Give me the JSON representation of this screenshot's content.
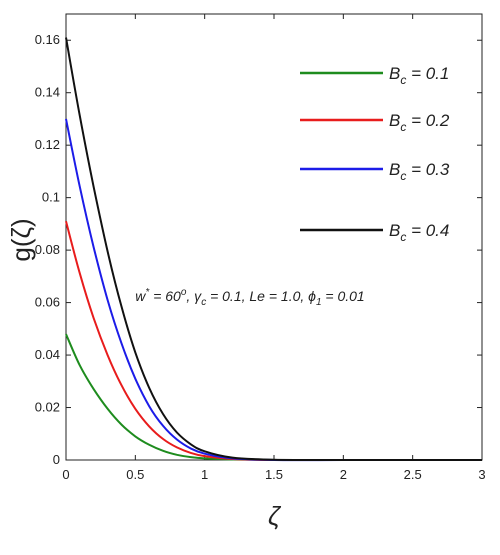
{
  "chart_data": {
    "type": "line",
    "xlabel": "ζ",
    "ylabel": "g(ζ)",
    "xlim": [
      0,
      3
    ],
    "ylim": [
      0,
      0.17
    ],
    "x_ticks": [
      0,
      0.5,
      1,
      1.5,
      2,
      2.5,
      3
    ],
    "x_tick_labels": [
      "0",
      "0.5",
      "1",
      "1.5",
      "2",
      "2.5",
      "3"
    ],
    "y_ticks": [
      0,
      0.02,
      0.04,
      0.06,
      0.08,
      0.1,
      0.12,
      0.14,
      0.16
    ],
    "y_tick_labels": [
      "0",
      "0.02",
      "0.04",
      "0.06",
      "0.08",
      "0.1",
      "0.12",
      "0.14",
      "0.16"
    ],
    "grid": false,
    "legend_position": "top-right",
    "x": [
      0,
      0.1,
      0.2,
      0.3,
      0.4,
      0.5,
      0.6,
      0.7,
      0.8,
      0.9,
      1.0,
      1.2,
      1.5,
      2.0,
      2.5,
      3.0
    ],
    "series": [
      {
        "name": "0.1",
        "color": "#1e8c1e",
        "values": [
          0.048,
          0.036,
          0.027,
          0.0195,
          0.0135,
          0.009,
          0.0058,
          0.0035,
          0.002,
          0.0011,
          0.0006,
          0.0002,
          0.0,
          0.0,
          0.0,
          0.0
        ]
      },
      {
        "name": "0.2",
        "color": "#e81c1c",
        "values": [
          0.091,
          0.071,
          0.054,
          0.04,
          0.0285,
          0.0195,
          0.0128,
          0.008,
          0.0048,
          0.0027,
          0.0015,
          0.0004,
          0.0,
          0.0,
          0.0,
          0.0
        ]
      },
      {
        "name": "0.3",
        "color": "#1c1ce8",
        "values": [
          0.13,
          0.104,
          0.081,
          0.061,
          0.0445,
          0.031,
          0.0205,
          0.013,
          0.0078,
          0.0044,
          0.0024,
          0.0006,
          0.0,
          0.0,
          0.0,
          0.0
        ]
      },
      {
        "name": "0.4",
        "color": "#111111",
        "values": [
          0.161,
          0.131,
          0.104,
          0.0795,
          0.0585,
          0.041,
          0.0275,
          0.0175,
          0.0105,
          0.006,
          0.0033,
          0.0009,
          0.0001,
          0.0,
          0.0,
          0.0
        ]
      }
    ],
    "legend_label_prefix": "B",
    "legend_label_subscript": "c",
    "legend_label_equals": " = ",
    "annotation": {
      "w": "w",
      "w_sup": "*",
      "w_val": " = 60",
      "w_deg": "o",
      "gamma": ", γ",
      "gamma_sub": "c",
      "gamma_val": " = 0.1, Le = 1.0, ",
      "phi": "ϕ",
      "phi_sub": "1",
      "phi_val": " = 0.01"
    }
  }
}
